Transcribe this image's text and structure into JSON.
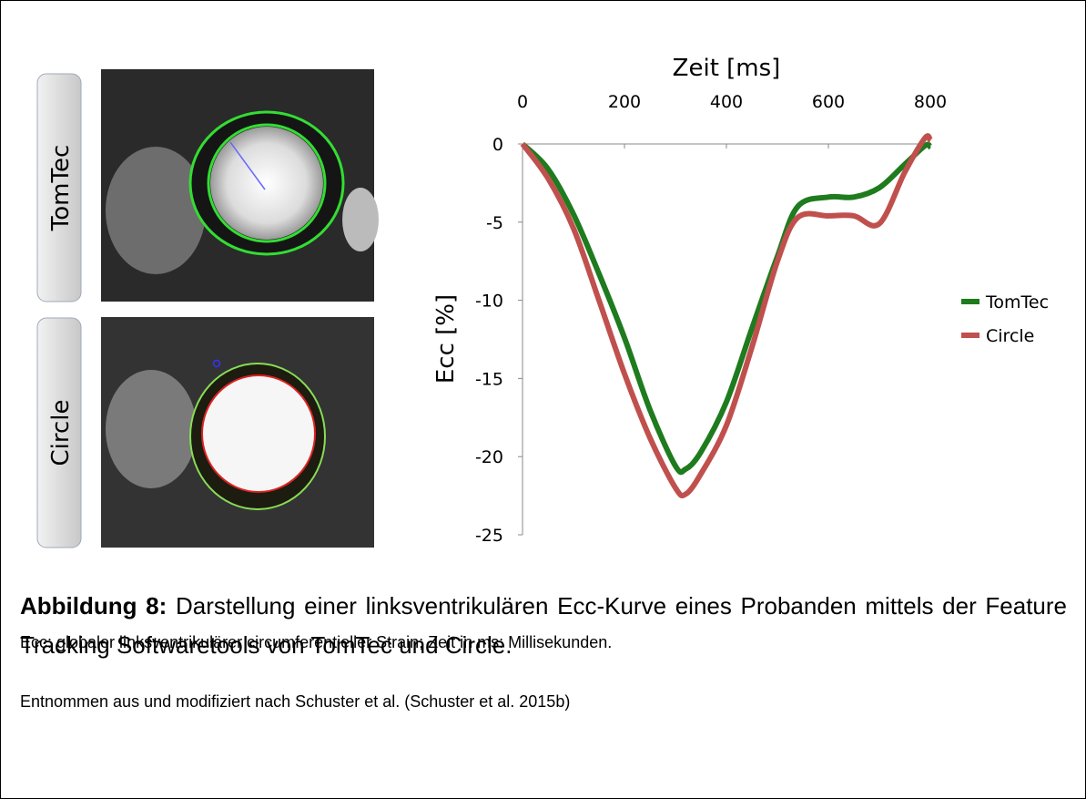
{
  "panels": [
    {
      "label": "TomTec"
    },
    {
      "label": "Circle"
    }
  ],
  "chart_data": {
    "type": "line",
    "x_label": "Zeit [ms]",
    "y_label": "Ecc [%]",
    "x": [
      0,
      50,
      100,
      150,
      200,
      250,
      300,
      320,
      350,
      400,
      450,
      500,
      540,
      600,
      650,
      700,
      750,
      790,
      800
    ],
    "xlim": [
      0,
      800
    ],
    "xticks": [
      0,
      200,
      400,
      600,
      800
    ],
    "ylim": [
      -25,
      0
    ],
    "yticks": [
      0,
      -5,
      -10,
      -15,
      -20,
      -25
    ],
    "legend": "right",
    "series": [
      {
        "name": "TomTec",
        "color": "#1e7b1e",
        "values": [
          0,
          -1.6,
          -4.5,
          -8.3,
          -12.4,
          -17,
          -20.6,
          -20.8,
          -19.7,
          -16.5,
          -11.8,
          -7.2,
          -4,
          -3.4,
          -3.4,
          -2.8,
          -1.3,
          -0.1,
          -0.2
        ]
      },
      {
        "name": "Circle",
        "color": "#c0504d",
        "values": [
          0,
          -2.2,
          -5.4,
          -10,
          -14.7,
          -18.8,
          -22,
          -22.4,
          -21.1,
          -18,
          -13,
          -7.5,
          -4.7,
          -4.6,
          -4.6,
          -5.1,
          -1.8,
          0.4,
          0.2
        ]
      }
    ]
  },
  "caption": {
    "label": "Abbildung 8:",
    "text": "Darstellung einer linksventrikulären Ecc-Kurve eines Probanden mittels der Feature Tracking Softwaretools von TomTec und Circle."
  },
  "notes": [
    "Ecc: globaler linksventrikulärer circumferentieller Strain; Zeit in ms: Millisekunden.",
    "Entnommen aus und modifiziert nach Schuster et al. (Schuster et al. 2015b)"
  ]
}
